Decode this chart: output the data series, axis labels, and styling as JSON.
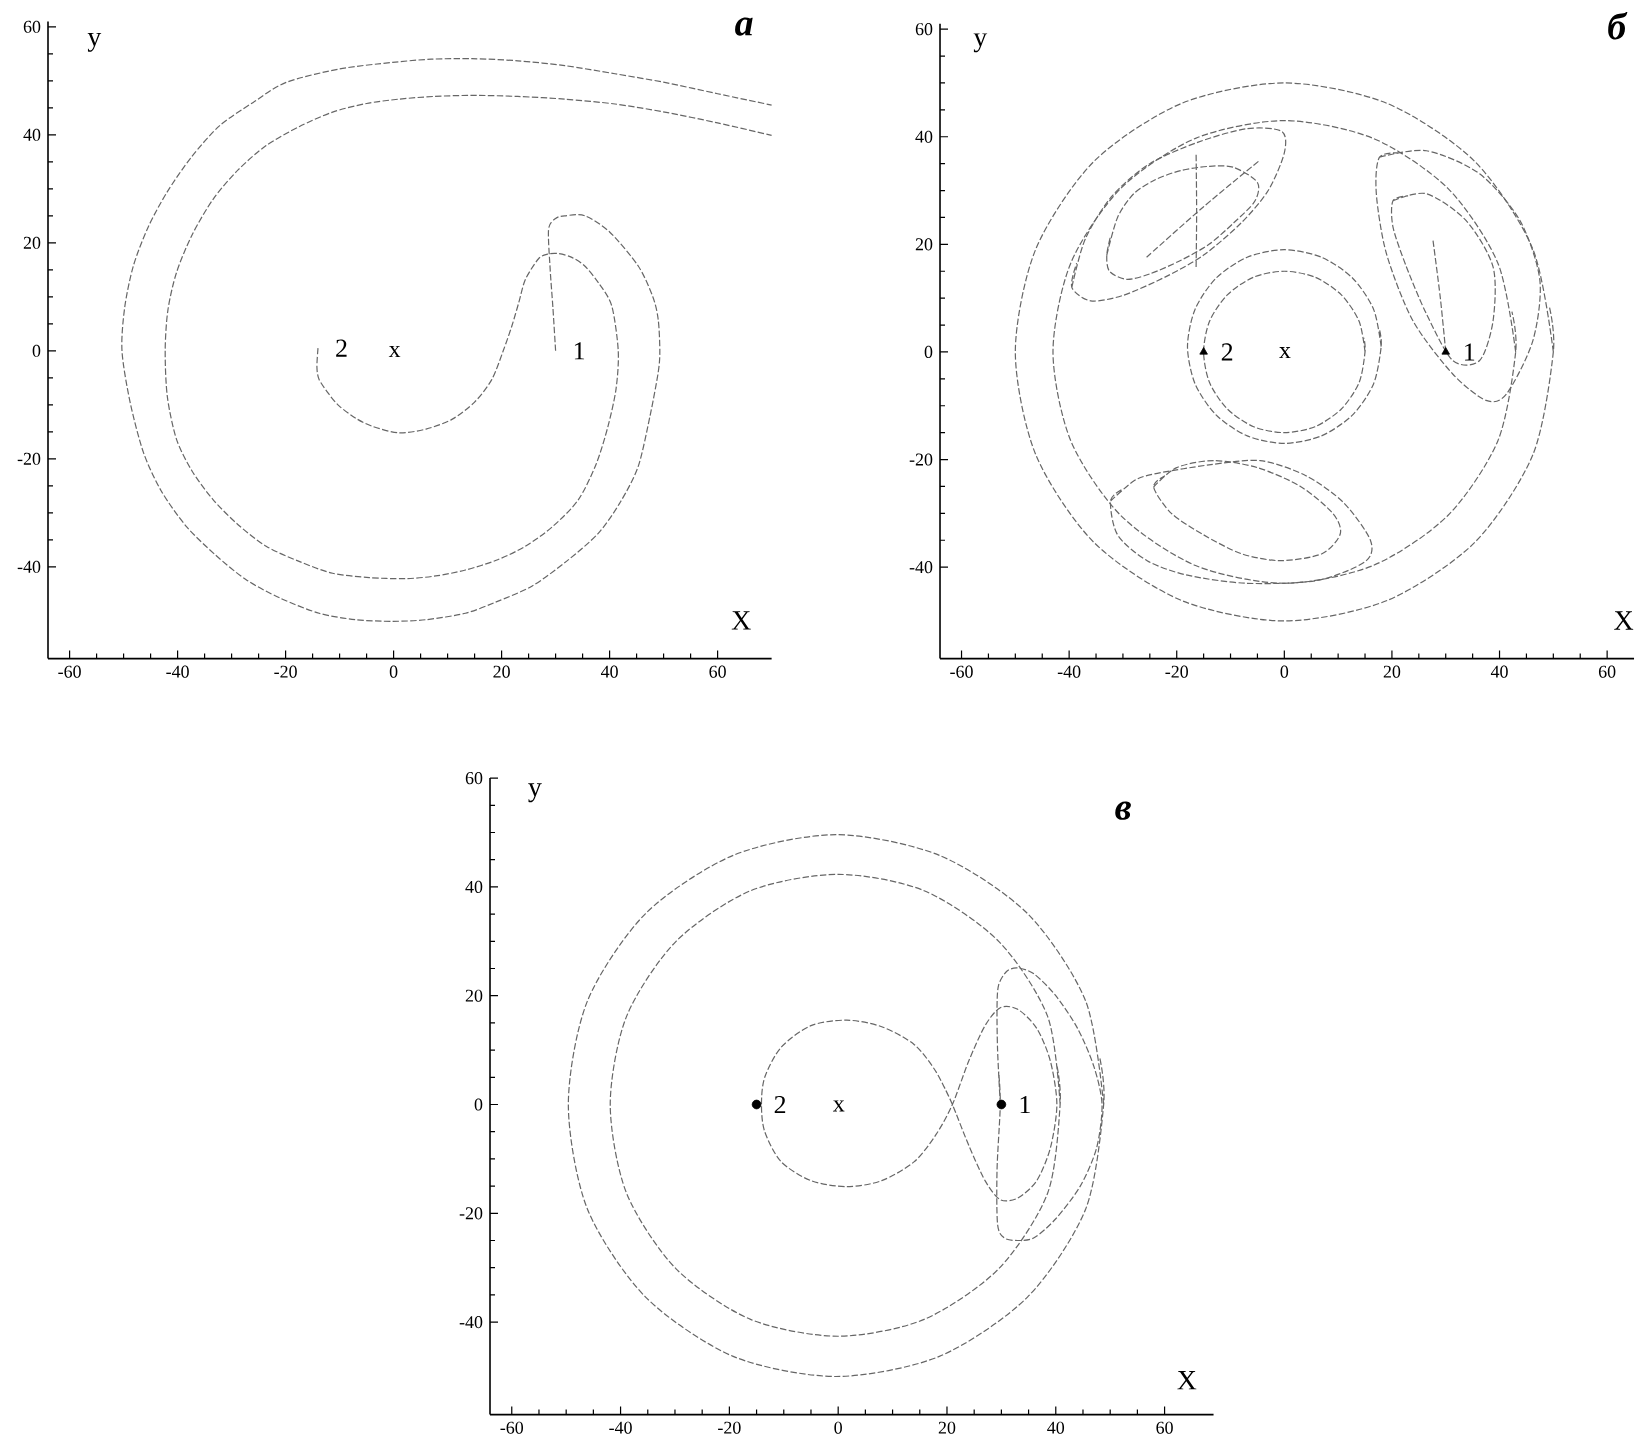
{
  "chart_data": [
    {
      "type": "line",
      "title": "а",
      "xlabel": "X",
      "ylabel": "y",
      "xlim": [
        -64,
        70
      ],
      "ylim": [
        -57,
        61
      ],
      "xticks": [
        -60,
        -40,
        -20,
        0,
        20,
        40,
        60
      ],
      "yticks": [
        -40,
        -20,
        0,
        20,
        40,
        60
      ],
      "line_style": "dashed",
      "annotations": [
        {
          "text": "1",
          "x": 30,
          "y": 0
        },
        {
          "text": "2",
          "x": -14,
          "y": 0.5
        },
        "x"
      ],
      "series": [
        {
          "color": "#666666",
          "x": [
            30,
            29.5,
            29,
            28.7,
            30,
            31.7,
            35.4,
            40,
            45.3,
            48,
            49,
            49.3,
            49,
            47.5,
            45.3,
            42,
            37.9,
            32,
            25.6,
            19,
            13.3,
            6,
            -0.2,
            -7,
            -13.8,
            -21,
            -27.3,
            -33,
            -38.4,
            -43,
            -46.3,
            -48.8,
            -50.3,
            -49.8,
            -48.2,
            -45.5,
            -42,
            -37.5,
            -32.2,
            -26,
            -19.9,
            -10,
            -0.2,
            7,
            14.5,
            23,
            31.7,
            41,
            50.2,
            60,
            70
          ],
          "values": [
            0,
            8,
            15,
            22.5,
            24.5,
            25,
            25,
            22,
            15.7,
            10,
            5.8,
            0,
            -4,
            -12,
            -21.4,
            -28,
            -33.8,
            -39,
            -43.6,
            -46.5,
            -48.6,
            -49.8,
            -50.1,
            -49.8,
            -48.6,
            -45.8,
            -42.4,
            -37.8,
            -32.5,
            -26,
            -18.9,
            -9.5,
            0,
            8,
            15.7,
            22.8,
            29.3,
            35.8,
            41.7,
            46,
            49.7,
            52.2,
            53.4,
            54,
            54.1,
            53.7,
            52.8,
            51.3,
            49.7,
            47.6,
            45.5
          ]
        },
        {
          "color": "#666666",
          "x": [
            -14,
            -14.2,
            -13.8,
            -12,
            -10.1,
            -7,
            -3.9,
            1,
            6,
            10.8,
            15,
            18.2,
            20.3,
            21.9,
            23.2,
            24.4,
            26.8,
            28.5,
            30.5,
            33,
            35.4,
            38,
            40.4,
            41.6,
            41.2,
            39.7,
            37.5,
            34.2,
            29.5,
            24.4,
            19,
            13.3,
            7.8,
            2.2,
            -4.5,
            -11.3,
            -17.5,
            -23.6,
            -28.8,
            -33.4,
            -37.3,
            -40.2,
            -41.9,
            -42.3,
            -41.8,
            -40.2,
            -37.3,
            -33.4,
            -28.8,
            -23.6,
            -17.5,
            -11.3,
            -5,
            1,
            7.5,
            14.5,
            23,
            31.7,
            41,
            50.2,
            60,
            70
          ],
          "values": [
            0.5,
            -3,
            -5.3,
            -8,
            -10.2,
            -12.5,
            -14,
            -15.2,
            -14.5,
            -12.7,
            -9.5,
            -5.3,
            0,
            4.6,
            9,
            13.2,
            17,
            17.9,
            18,
            17.3,
            15.7,
            12.5,
            8.3,
            0,
            -7,
            -14,
            -21,
            -27.6,
            -32.5,
            -36.2,
            -38.8,
            -40.6,
            -41.7,
            -42.2,
            -42,
            -41.2,
            -39,
            -36.2,
            -32.2,
            -27.6,
            -22.3,
            -16.4,
            -8.5,
            0,
            7.5,
            14.5,
            21.5,
            28.1,
            33.5,
            38,
            41.5,
            44.2,
            45.8,
            46.6,
            47.1,
            47.3,
            47.1,
            46.6,
            45.7,
            44.2,
            42.2,
            39.9
          ]
        }
      ]
    },
    {
      "type": "line",
      "title": "б",
      "xlabel": "X",
      "ylabel": "y",
      "xlim": [
        -64,
        65
      ],
      "ylim": [
        -57,
        61
      ],
      "xticks": [
        -60,
        -40,
        -20,
        0,
        20,
        40,
        60
      ],
      "yticks": [
        -40,
        -20,
        0,
        20,
        40,
        60
      ],
      "line_style": "dashed",
      "annotations": [
        {
          "text": "1",
          "x": 30,
          "y": 0
        },
        {
          "text": "2",
          "x": -15,
          "y": 0
        },
        "x"
      ],
      "series": [
        {
          "color": "#666666",
          "x": [
            50,
            46.2,
            35.4,
            19.1,
            0,
            -19.1,
            -35.4,
            -46.2,
            -50,
            -46.2,
            -35.4,
            -19.1,
            0,
            19.1,
            35.4,
            46.2,
            50,
            49.2
          ],
          "values": [
            0,
            19.1,
            35.4,
            46.2,
            50,
            46.2,
            35.4,
            19.1,
            0,
            -19.1,
            -35.4,
            -46.2,
            -50,
            -46.2,
            -35.4,
            -19.1,
            0,
            8.7
          ]
        },
        {
          "color": "#666666",
          "x": [
            43,
            39.7,
            30.4,
            16.5,
            0,
            -16.5,
            -30.4,
            -39.7,
            -43,
            -39.7,
            -30.4,
            -16.5,
            0,
            16.5,
            30.4,
            39.7,
            43,
            42.3
          ],
          "values": [
            0,
            16.5,
            30.4,
            39.7,
            43,
            39.7,
            30.4,
            16.5,
            0,
            -16.5,
            -30.4,
            -39.7,
            -43,
            -39.7,
            -30.4,
            -16.5,
            0,
            7.5
          ]
        },
        {
          "color": "#666666",
          "x": [
            15,
            13.9,
            10.6,
            5.7,
            0,
            -5.7,
            -10.6,
            -13.9,
            -15,
            -13.9,
            -10.6,
            -5.7,
            0,
            5.7,
            10.6,
            13.9,
            15,
            14.8
          ],
          "values": [
            0,
            5.7,
            10.6,
            13.9,
            15,
            13.9,
            10.6,
            5.7,
            0,
            -5.7,
            -10.6,
            -13.9,
            -15,
            -13.9,
            -10.6,
            -5.7,
            0,
            2.6
          ]
        },
        {
          "color": "#666666",
          "x": [
            18,
            16.6,
            12.7,
            6.9,
            0,
            -6.9,
            -12.7,
            -16.6,
            -18,
            -16.6,
            -12.7,
            -6.9,
            0,
            6.9,
            12.7,
            16.6,
            18,
            17.7
          ],
          "values": [
            1,
            7.9,
            13.7,
            17.6,
            19,
            17.6,
            13.7,
            7.9,
            1,
            -5.9,
            -11.7,
            -15.6,
            -17,
            -15.6,
            -11.7,
            -5.9,
            1,
            4.1
          ]
        },
        {
          "color": "#666666",
          "x": [
            -39.5,
            -37,
            -32,
            -25,
            -16,
            -7,
            -0.5,
            0,
            -3,
            -8,
            -15,
            -22,
            -30,
            -36,
            -39.5,
            -38.6
          ],
          "values": [
            12,
            21,
            29,
            35,
            39,
            41.5,
            41,
            37,
            30,
            24,
            18,
            14,
            10.5,
            9.5,
            12,
            16.5
          ]
        },
        {
          "color": "#666666",
          "x": [
            -33,
            -31,
            -28,
            -24,
            -19.3,
            -14,
            -9.4,
            -5,
            -5.5,
            -9.4,
            -14,
            -19.3,
            -25,
            -29.3,
            -32.5,
            -33,
            -32.3
          ],
          "values": [
            18,
            25,
            29.4,
            32,
            33.7,
            34.5,
            34.3,
            31.5,
            28,
            24,
            20,
            17,
            14.5,
            13.5,
            15,
            18,
            21.5
          ]
        },
        {
          "color": "#666666",
          "x": [
            17.7,
            26.4,
            36.3,
            43.8,
            47.5,
            46.2,
            41.3,
            37.5,
            31.3,
            23.9,
            19,
            17.1,
            17.7,
            22
          ],
          "values": [
            36.2,
            37.4,
            33.1,
            24.4,
            13.3,
            2.1,
            -7.8,
            -9,
            -4.1,
            5.8,
            18.2,
            29.4,
            36.2,
            37
          ]
        },
        {
          "color": "#666666",
          "x": [
            20.2,
            26.4,
            33.8,
            38.8,
            38.8,
            36.3,
            31.3,
            26.4,
            22.7,
            20.2,
            20.2,
            23
          ],
          "values": [
            28.1,
            29.4,
            24.4,
            15.8,
            5.8,
            -1.6,
            -1.6,
            7.1,
            15.8,
            23.2,
            28.1,
            29
          ]
        },
        {
          "color": "#666666",
          "x": [
            -32.3,
            -28,
            -24.3,
            -14,
            -4.5,
            4,
            11,
            16,
            15,
            6,
            -7,
            -18,
            -25.5,
            -31,
            -32.3,
            -30.2
          ],
          "values": [
            -27.7,
            -24,
            -22.7,
            -21,
            -20.2,
            -23,
            -28,
            -35,
            -39,
            -42.5,
            -43,
            -41.5,
            -38.8,
            -34,
            -27.7,
            -25.6
          ]
        },
        {
          "color": "#666666",
          "x": [
            -24.3,
            -20,
            -13.1,
            -5,
            3,
            9,
            10.4,
            7,
            -0.7,
            -8,
            -15,
            -21,
            -24.3,
            -22.2
          ],
          "values": [
            -25.1,
            -21.5,
            -20.2,
            -21.5,
            -25,
            -30,
            -33.8,
            -37.5,
            -38.8,
            -37.5,
            -34,
            -30,
            -25.1,
            -23
          ]
        },
        {
          "color": "#666666",
          "x": [
            30,
            29,
            27.6
          ],
          "values": [
            0,
            10,
            21
          ]
        },
        {
          "color": "#666666",
          "x": [
            -25.6,
            -15,
            -4.6
          ],
          "values": [
            17.6,
            27,
            35.6
          ]
        },
        {
          "color": "#666666",
          "x": [
            -16.4,
            -16.3,
            -16.4
          ],
          "values": [
            15.8,
            26,
            36.8
          ]
        },
        {
          "type": "scatter",
          "marker": "triangle",
          "color": "#000000",
          "x": [
            -15,
            30
          ],
          "values": [
            0,
            0
          ]
        }
      ]
    },
    {
      "type": "line",
      "title": "в",
      "xlabel": "X",
      "ylabel": "y",
      "xlim": [
        -64,
        69
      ],
      "ylim": [
        -57,
        60
      ],
      "xticks": [
        -60,
        -40,
        -20,
        0,
        20,
        40,
        60
      ],
      "yticks": [
        -40,
        -20,
        0,
        20,
        40,
        60
      ],
      "line_style": "dashed",
      "annotations": [
        {
          "text": "1",
          "x": 30,
          "y": 0
        },
        {
          "text": "2",
          "x": -15,
          "y": 0
        },
        "x"
      ],
      "series": [
        {
          "color": "#666666",
          "x": [
            48.8,
            45.5,
            34.8,
            18.6,
            -0.4,
            -19.3,
            -35.4,
            -46.1,
            -49.6,
            -46.1,
            -35.4,
            -19.3,
            -0.4,
            18.6,
            34.8,
            45.5,
            48.8,
            48.1
          ],
          "values": [
            0,
            19,
            35.1,
            45.8,
            49.6,
            45.8,
            35.1,
            19,
            0,
            -19.2,
            -35.4,
            -46.3,
            -50,
            -46.3,
            -35.4,
            -19.2,
            0,
            8.5
          ]
        },
        {
          "color": "#666666",
          "x": [
            40.8,
            38.5,
            29.5,
            15.8,
            0,
            -16.1,
            -29.8,
            -38.9,
            -41.9,
            -38.9,
            -29.8,
            -16.1,
            0,
            15.8,
            29.5,
            38.5,
            40.8,
            40.2
          ],
          "values": [
            0,
            16.2,
            30,
            39.3,
            42.3,
            39.3,
            30,
            16.2,
            0,
            -16.3,
            -30.2,
            -39.5,
            -42.6,
            -39.5,
            -30.2,
            -16.3,
            0,
            7.2
          ]
        },
        {
          "color": "#666666",
          "x": [
            21,
            18,
            14,
            8,
            1.6,
            -5,
            -10.5,
            -13.5,
            -14.1,
            -13.5,
            -10.5,
            -5,
            1.6,
            8,
            14,
            18,
            21,
            24,
            27,
            29.8,
            33,
            36.5,
            39,
            40.2,
            39,
            36.5,
            33,
            29.8,
            27,
            24,
            21,
            19.5
          ],
          "values": [
            0,
            6,
            11,
            14.3,
            15.5,
            14.5,
            10.5,
            5,
            0,
            -5,
            -10.5,
            -14,
            -15.1,
            -14,
            -10.5,
            -5.5,
            0,
            8,
            14.5,
            17.8,
            17.5,
            14,
            8,
            0,
            -8,
            -14,
            -17.2,
            -17.5,
            -14,
            -7.5,
            0,
            3.2
          ]
        },
        {
          "color": "#666666",
          "x": [
            29.8,
            29.3,
            29.2,
            29.5,
            31,
            33,
            36,
            40,
            44,
            47,
            48.5,
            47.5,
            44.5,
            40,
            36,
            33,
            30.5,
            29.3,
            29.2,
            29.8,
            29.5
          ],
          "values": [
            0,
            10,
            18,
            22,
            24.5,
            25.1,
            24,
            20,
            14,
            7,
            0,
            -8,
            -15,
            -21,
            -24.5,
            -25,
            -24.5,
            -22,
            -12,
            0,
            6
          ]
        },
        {
          "type": "scatter",
          "marker": "circle",
          "color": "#000000",
          "x": [
            -15,
            30
          ],
          "values": [
            0,
            0
          ]
        }
      ]
    }
  ]
}
